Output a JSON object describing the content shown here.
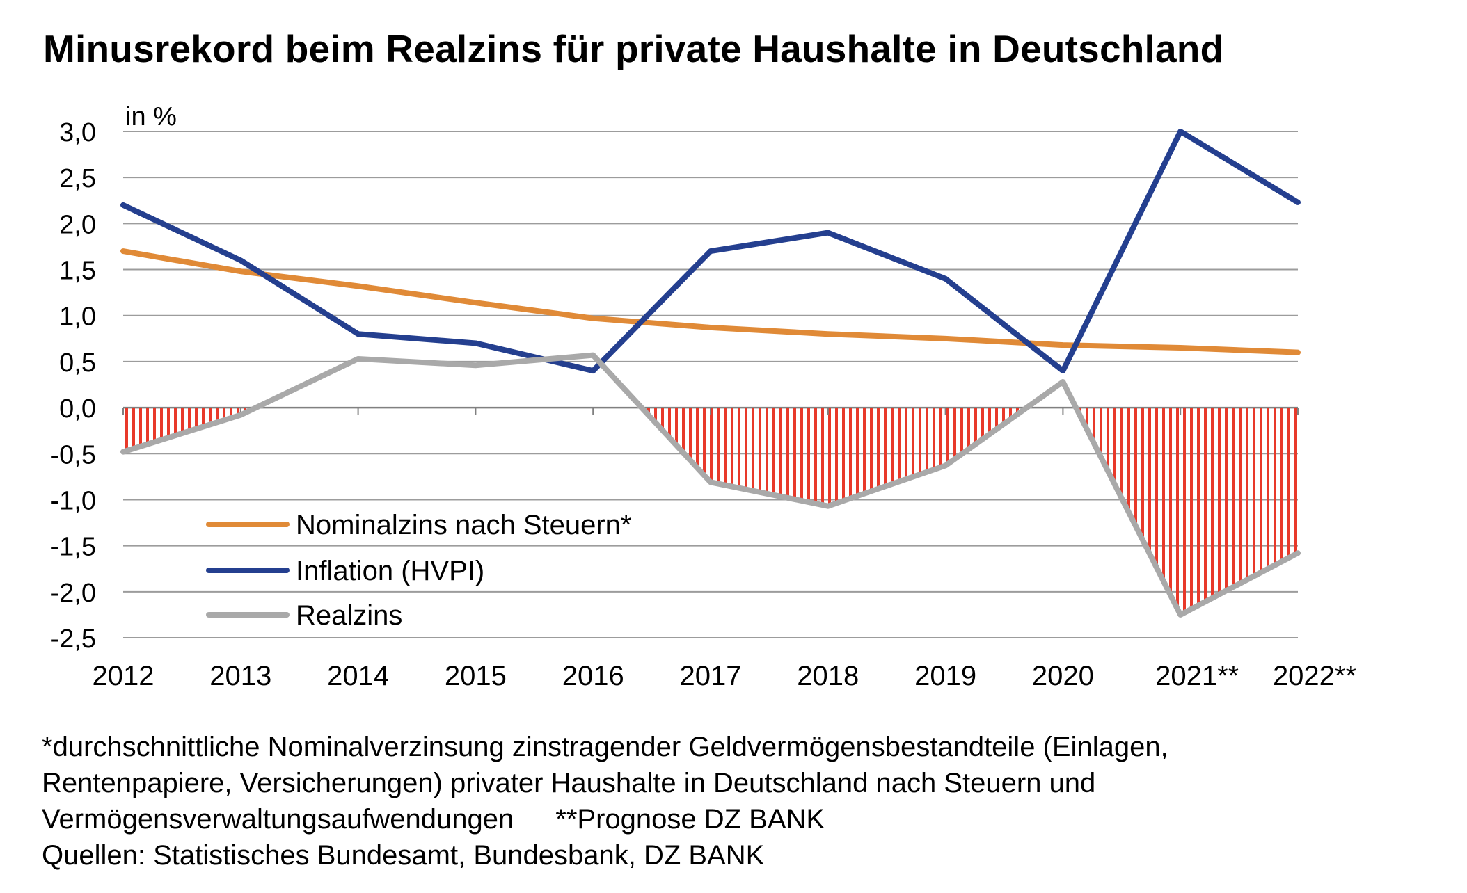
{
  "chart_data": {
    "type": "line",
    "title": "Minusrekord beim Realzins für private Haushalte in Deutschland",
    "unit_label": "in %",
    "categories": [
      "2012",
      "2013",
      "2014",
      "2015",
      "2016",
      "2017",
      "2018",
      "2019",
      "2020",
      "2021**",
      "2022**"
    ],
    "ylim": [
      -2.5,
      3.0
    ],
    "yticks": [
      "3,0",
      "2,5",
      "2,0",
      "1,5",
      "1,0",
      "0,5",
      "0,0",
      "-0,5",
      "-1,0",
      "-1,5",
      "-2,0",
      "-2,5"
    ],
    "ytick_values": [
      3.0,
      2.5,
      2.0,
      1.5,
      1.0,
      0.5,
      0.0,
      -0.5,
      -1.0,
      -1.5,
      -2.0,
      -2.5
    ],
    "grid": true,
    "legend_position": "bottom-left",
    "negative_area_fill": "#e8392a",
    "series": [
      {
        "name": "Nominalzins nach Steuern*",
        "color": "#e08a37",
        "values": [
          1.7,
          1.48,
          1.32,
          1.14,
          0.97,
          0.87,
          0.8,
          0.75,
          0.68,
          0.65,
          0.6
        ]
      },
      {
        "name": "Inflation (HVPI)",
        "color": "#243f8f",
        "values": [
          2.2,
          1.6,
          0.8,
          0.7,
          0.4,
          1.7,
          1.9,
          1.4,
          0.4,
          3.0,
          2.23
        ]
      },
      {
        "name": "Realzins",
        "color": "#a9a9a9",
        "values": [
          -0.48,
          -0.08,
          0.53,
          0.46,
          0.57,
          -0.81,
          -1.07,
          -0.63,
          0.28,
          -2.25,
          -1.58
        ]
      }
    ]
  },
  "footnotes": {
    "line1": "*durchschnittliche Nominalverzinsung zinstragender Geldvermögensbestandteile (Einlagen,",
    "line2": "Rentenpapiere, Versicherungen) privater Haushalte in Deutschland nach Steuern und",
    "line3a": "Vermögensverwaltungsaufwendungen",
    "line3b": "**Prognose DZ BANK",
    "line4": "Quellen: Statistisches Bundesamt, Bundesbank, DZ BANK"
  }
}
